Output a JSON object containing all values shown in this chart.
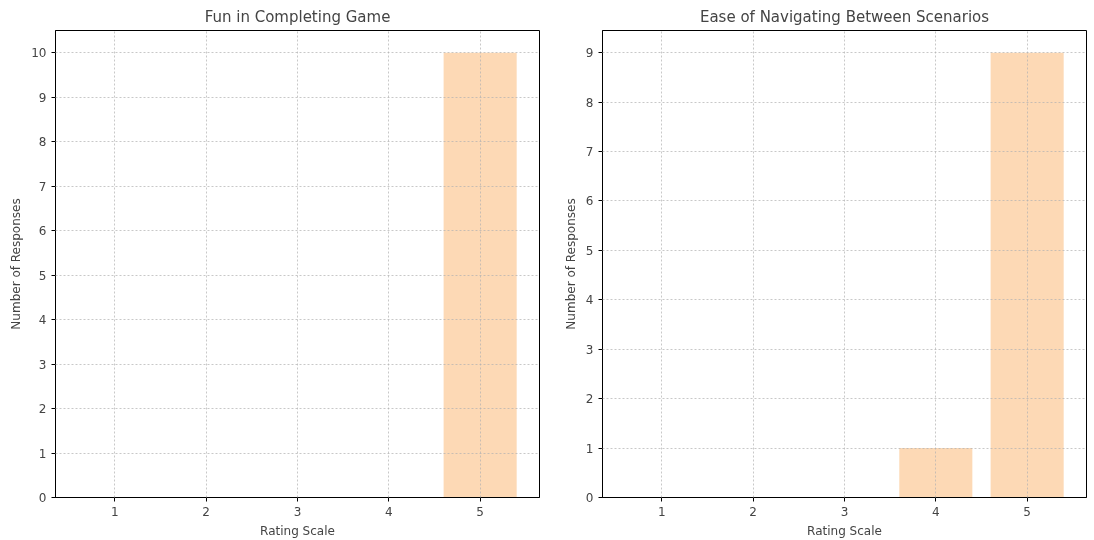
{
  "chart_data": [
    {
      "type": "bar",
      "title": "Fun in Completing Game",
      "xlabel": "Rating Scale",
      "ylabel": "Number of Responses",
      "x": [
        1,
        2,
        3,
        4,
        5
      ],
      "values": [
        0,
        0,
        0,
        0,
        10
      ],
      "color": "#fdd9b5",
      "xlim": [
        0.35,
        5.65
      ],
      "xticks": [
        1,
        2,
        3,
        4,
        5
      ],
      "ylim": [
        0,
        10.5
      ],
      "yticks": [
        0,
        1,
        2,
        3,
        4,
        5,
        6,
        7,
        8,
        9,
        10
      ],
      "grid": true
    },
    {
      "type": "bar",
      "title": "Ease of Navigating Between Scenarios",
      "xlabel": "Rating Scale",
      "ylabel": "Number of Responses",
      "x": [
        1,
        2,
        3,
        4,
        5
      ],
      "values": [
        0,
        0,
        0,
        1,
        9
      ],
      "color": "#fdd9b5",
      "xlim": [
        0.35,
        5.65
      ],
      "xticks": [
        1,
        2,
        3,
        4,
        5
      ],
      "ylim": [
        0,
        9.45
      ],
      "yticks": [
        0,
        1,
        2,
        3,
        4,
        5,
        6,
        7,
        8,
        9
      ],
      "grid": true
    }
  ]
}
